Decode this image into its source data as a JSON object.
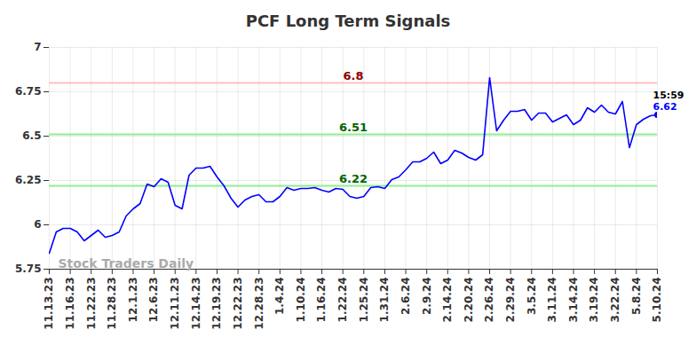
{
  "chart_data": {
    "type": "line",
    "title": "PCF Long Term Signals",
    "categories": [
      "11.13.23",
      null,
      null,
      "11.16.23",
      null,
      null,
      "11.22.23",
      null,
      null,
      "11.28.23",
      null,
      null,
      "12.1.23",
      null,
      null,
      "12.6.23",
      null,
      null,
      "12.11.23",
      null,
      null,
      "12.14.23",
      null,
      null,
      "12.19.23",
      null,
      null,
      "12.22.23",
      null,
      null,
      "12.28.23",
      null,
      null,
      "1.4.24",
      null,
      null,
      "1.10.24",
      null,
      null,
      "1.16.24",
      null,
      null,
      "1.22.24",
      null,
      null,
      "1.25.24",
      null,
      null,
      "1.31.24",
      null,
      null,
      "2.6.24",
      null,
      null,
      "2.9.24",
      null,
      null,
      "2.14.24",
      null,
      null,
      "2.20.24",
      null,
      null,
      "2.26.24",
      null,
      null,
      "2.29.24",
      null,
      null,
      "3.5.24",
      null,
      null,
      "3.11.24",
      null,
      null,
      "3.14.24",
      null,
      null,
      "3.19.24",
      null,
      null,
      "3.22.24",
      null,
      null,
      "5.8.24",
      null,
      null,
      "5.10.24"
    ],
    "values": [
      5.84,
      5.96,
      5.98,
      5.98,
      5.96,
      5.91,
      5.94,
      5.97,
      5.93,
      5.94,
      5.96,
      6.05,
      6.09,
      6.12,
      6.23,
      6.215,
      6.26,
      6.24,
      6.11,
      6.09,
      6.28,
      6.32,
      6.32,
      6.33,
      6.27,
      6.22,
      6.15,
      6.1,
      6.14,
      6.16,
      6.17,
      6.13,
      6.13,
      6.16,
      6.21,
      6.195,
      6.205,
      6.205,
      6.21,
      6.195,
      6.185,
      6.205,
      6.2,
      6.16,
      6.15,
      6.16,
      6.21,
      6.215,
      6.205,
      6.255,
      6.27,
      6.31,
      6.355,
      6.355,
      6.375,
      6.41,
      6.345,
      6.365,
      6.42,
      6.405,
      6.38,
      6.365,
      6.395,
      6.83,
      6.53,
      6.59,
      6.64,
      6.64,
      6.65,
      6.59,
      6.63,
      6.63,
      6.58,
      6.6,
      6.62,
      6.565,
      6.59,
      6.66,
      6.635,
      6.675,
      6.635,
      6.625,
      6.695,
      6.435,
      6.565,
      6.595,
      6.615,
      6.62
    ],
    "color": "#0000ff",
    "ylim": [
      5.75,
      7
    ],
    "yticks": [
      5.75,
      6,
      6.25,
      6.5,
      6.75,
      7
    ],
    "grid": true,
    "hlines": [
      {
        "value": 6.8,
        "line_color": "#ffc0c0",
        "label_color": "#8b0000"
      },
      {
        "value": 6.51,
        "line_color": "#90ee90",
        "label_color": "#006400"
      },
      {
        "value": 6.22,
        "line_color": "#90ee90",
        "label_color": "#006400"
      }
    ],
    "last_point_time": "15:59",
    "watermark": "Stock Traders Daily"
  }
}
